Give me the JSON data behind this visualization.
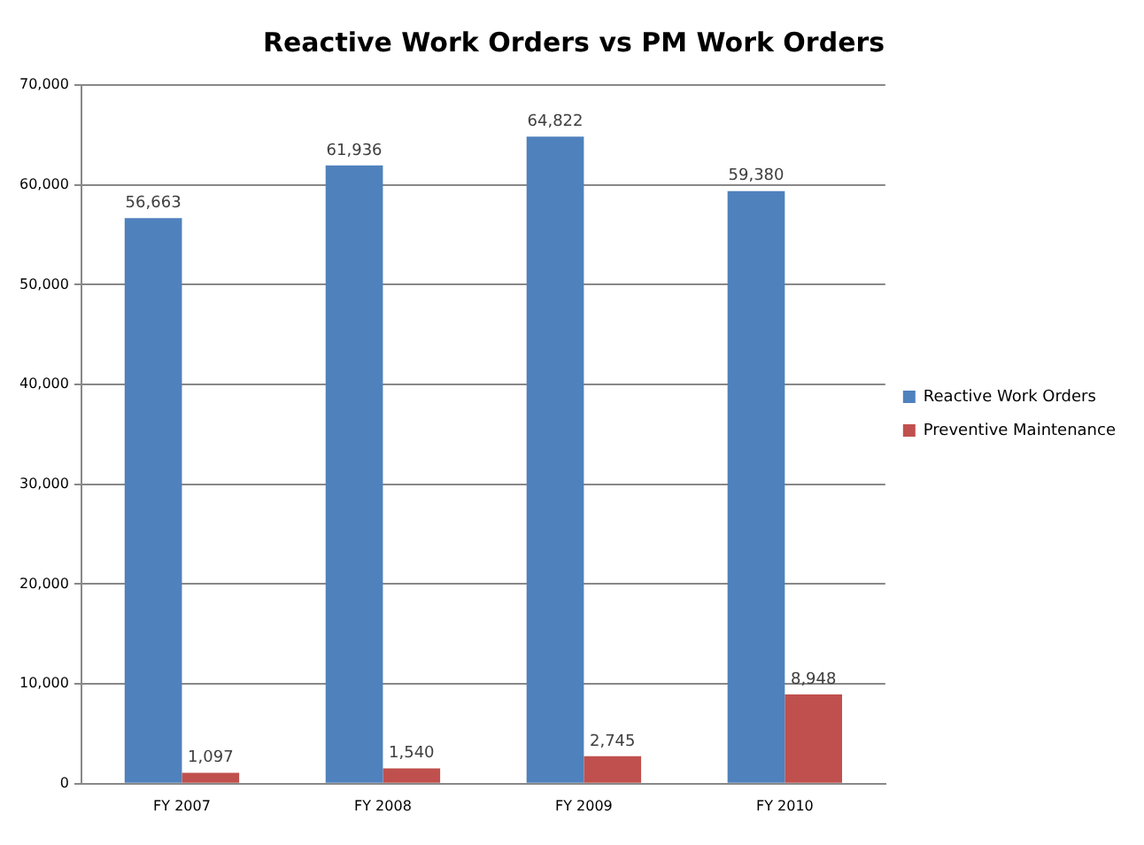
{
  "chart_data": {
    "type": "bar",
    "title": "Reactive Work Orders vs PM Work Orders",
    "categories": [
      "FY 2007",
      "FY 2008",
      "FY 2009",
      "FY 2010"
    ],
    "series": [
      {
        "name": "Reactive Work Orders",
        "color": "#4f81bd",
        "values": [
          56663,
          61936,
          64822,
          59380
        ],
        "value_labels": [
          "56,663",
          "61,936",
          "64,822",
          "59,380"
        ]
      },
      {
        "name": "Preventive Maintenance",
        "color": "#c0504d",
        "values": [
          1097,
          1540,
          2745,
          8948
        ],
        "value_labels": [
          "1,097",
          "1,540",
          "2,745",
          "8,948"
        ]
      }
    ],
    "ylim": [
      0,
      70000
    ],
    "yticks": [
      {
        "value": 0,
        "label": "0"
      },
      {
        "value": 10000,
        "label": "10,000"
      },
      {
        "value": 20000,
        "label": "20,000"
      },
      {
        "value": 30000,
        "label": "30,000"
      },
      {
        "value": 40000,
        "label": "40,000"
      },
      {
        "value": 50000,
        "label": "50,000"
      },
      {
        "value": 60000,
        "label": "60,000"
      },
      {
        "value": 70000,
        "label": "70,000"
      }
    ],
    "grid": "y",
    "legend": "right"
  }
}
